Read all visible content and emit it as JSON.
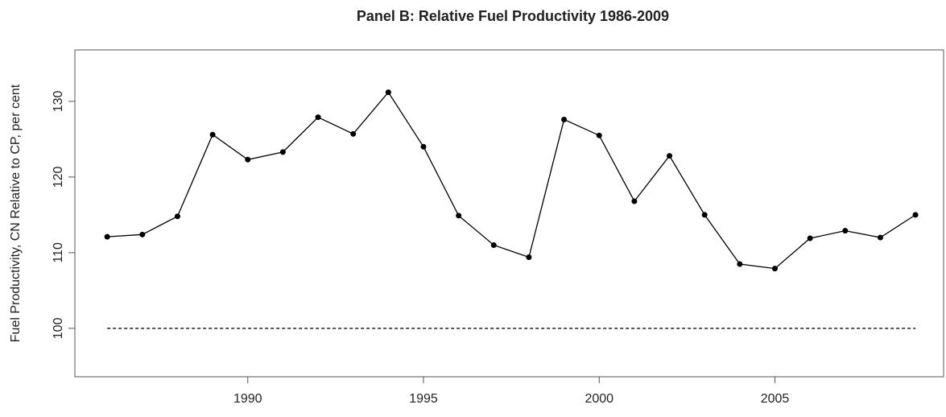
{
  "chart_data": {
    "type": "line",
    "title": "Panel B: Relative Fuel Productivity 1986-2009",
    "y_label": "Fuel Productivity, CN Relative to CP, per cent",
    "x": [
      1986,
      1987,
      1988,
      1989,
      1990,
      1991,
      1992,
      1993,
      1994,
      1995,
      1996,
      1997,
      1998,
      1999,
      2000,
      2001,
      2002,
      2003,
      2004,
      2005,
      2006,
      2007,
      2008,
      2009
    ],
    "series": [
      {
        "color": "#000000",
        "values": [
          112.1,
          112.4,
          114.8,
          125.6,
          122.3,
          123.3,
          127.9,
          125.7,
          131.2,
          124.0,
          114.9,
          111.0,
          109.4,
          127.6,
          125.5,
          116.8,
          122.8,
          115.0,
          108.5,
          107.9,
          111.9,
          112.9,
          112.0,
          115.0
        ]
      }
    ],
    "reference_line": {
      "y": 100,
      "x": [
        1986,
        2009
      ]
    },
    "xlim": [
      1985.08,
      2009.8
    ],
    "ylim": [
      93.6,
      136.8
    ],
    "xticks": [
      1990,
      1995,
      2000,
      2005
    ],
    "yticks": [
      100,
      110,
      120,
      130
    ]
  }
}
